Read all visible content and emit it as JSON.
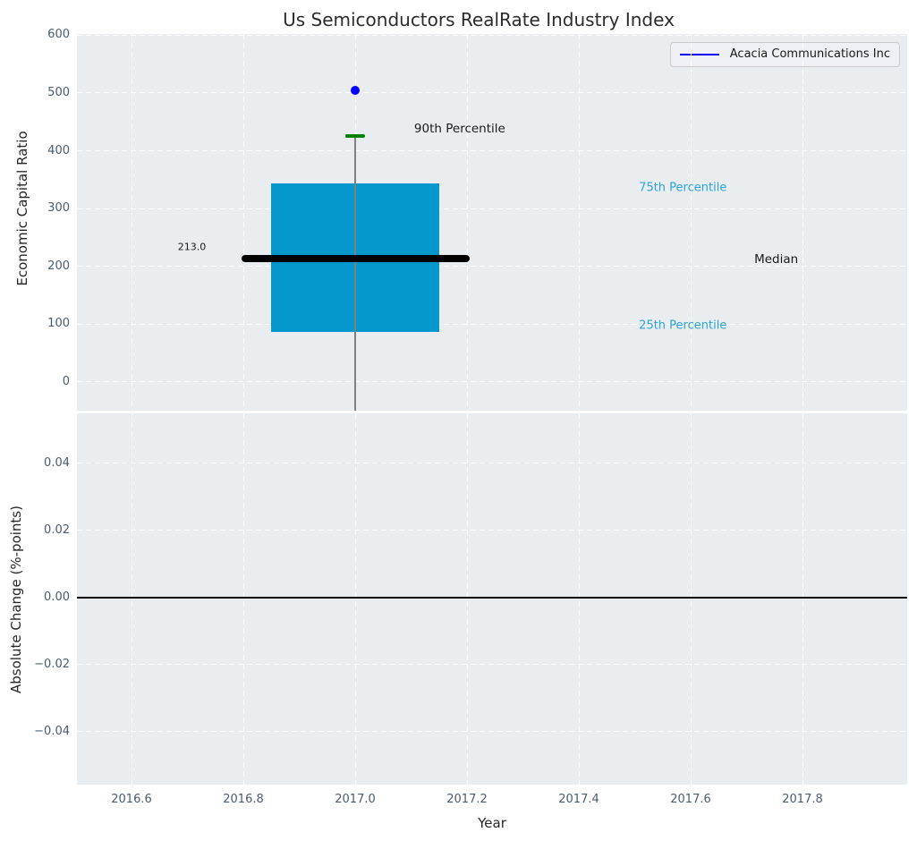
{
  "title": "Us Semiconductors RealRate Industry Index",
  "colors": {
    "figure_bg": "#ffffff",
    "axes_bg": "#e9edf0",
    "grid": "#ffffff",
    "box_fill": "#0598cd",
    "median_line": "#000000",
    "whisker": "#808080",
    "cap_90th": "#008000",
    "company_point": "#0000ff",
    "percentile_text": "#2aa3d8",
    "tick_text": "#4a5b6e",
    "label_text": "#262626",
    "zero_line": "#000000"
  },
  "chart_data": [
    {
      "type": "box",
      "title": "Us Semiconductors RealRate Industry Index",
      "ylabel": "Economic Capital Ratio",
      "xlim": [
        2016.5024,
        2017.9872
      ],
      "ylim": [
        -49.6,
        602.1
      ],
      "grid": {
        "style": "dashed",
        "color": "#ffffff",
        "on": true
      },
      "yticks": [
        {
          "v": 0,
          "label": "0"
        },
        {
          "v": 100,
          "label": "100"
        },
        {
          "v": 200,
          "label": "200"
        },
        {
          "v": 300,
          "label": "300"
        },
        {
          "v": 400,
          "label": "400"
        },
        {
          "v": 500,
          "label": "500"
        },
        {
          "v": 600,
          "label": "600"
        }
      ],
      "box": {
        "x": 2017.0,
        "p25": 87,
        "median": 213.0,
        "p75": 344,
        "p90": 425,
        "whisker_low": -49.6,
        "box_width_years": 0.302,
        "median_line_width_years": 0.408
      },
      "company_point": {
        "name": "Acacia Communications Inc",
        "x": 2017.0,
        "y": 505
      },
      "legend": {
        "position": "upper right",
        "entries": [
          {
            "label": "Acacia Communications Inc",
            "color": "#0000ff"
          }
        ]
      },
      "annotations": [
        {
          "text": "213.0",
          "x": 2016.708,
          "y": 234,
          "size": 11,
          "color": "#1a1a1a"
        },
        {
          "text": "90th Percentile",
          "x": 2017.187,
          "y": 438,
          "size": 13.5,
          "color": "#1a1a1a"
        },
        {
          "text": "75th Percentile",
          "x": 2017.586,
          "y": 336,
          "size": 13,
          "color": "#2aa3d8"
        },
        {
          "text": "Median",
          "x": 2017.753,
          "y": 212,
          "size": 13.5,
          "color": "#1a1a1a"
        },
        {
          "text": "25th Percentile",
          "x": 2017.586,
          "y": 97,
          "size": 13,
          "color": "#2aa3d8"
        }
      ]
    },
    {
      "type": "line",
      "ylabel": "Absolute Change (%-points)",
      "xlabel": "Year",
      "xlim": [
        2016.5024,
        2017.9872
      ],
      "ylim": [
        -0.0558,
        0.0549
      ],
      "grid": {
        "style": "dashed",
        "color": "#ffffff",
        "on": true
      },
      "yticks": [
        {
          "v": 0.04,
          "label": "0.04"
        },
        {
          "v": 0.02,
          "label": "0.02"
        },
        {
          "v": 0.0,
          "label": "0.00"
        },
        {
          "v": -0.02,
          "label": "−0.02"
        },
        {
          "v": -0.04,
          "label": "−0.04"
        }
      ],
      "xticks": [
        {
          "v": 2016.6,
          "label": "2016.6"
        },
        {
          "v": 2016.8,
          "label": "2016.8"
        },
        {
          "v": 2017.0,
          "label": "2017.0"
        },
        {
          "v": 2017.2,
          "label": "2017.2"
        },
        {
          "v": 2017.4,
          "label": "2017.4"
        },
        {
          "v": 2017.6,
          "label": "2017.6"
        },
        {
          "v": 2017.8,
          "label": "2017.8"
        }
      ],
      "series": [],
      "zero_line_y": 0.0
    }
  ]
}
